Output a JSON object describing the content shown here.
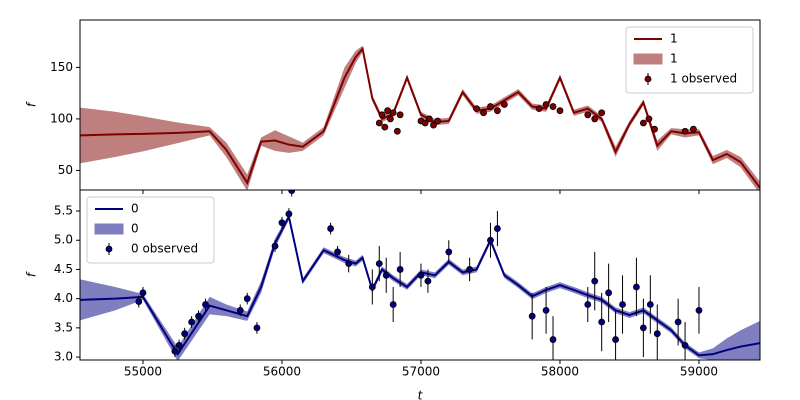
{
  "chart_data": [
    {
      "type": "line",
      "ylabel": "f",
      "legend": "upper right",
      "xlim": [
        54547,
        59439
      ],
      "xticks": [
        55000,
        56000,
        57000,
        58000,
        59000
      ],
      "ylim": [
        31,
        196
      ],
      "yticks": [
        50,
        100,
        150
      ],
      "x": [
        54550,
        54800,
        55000,
        55250,
        55480,
        55600,
        55750,
        55850,
        55950,
        56050,
        56150,
        56300,
        56450,
        56530,
        56580,
        56650,
        56720,
        56800,
        56900,
        57000,
        57100,
        57200,
        57300,
        57400,
        57500,
        57600,
        57700,
        57800,
        57900,
        58000,
        58100,
        58200,
        58300,
        58400,
        58500,
        58600,
        58700,
        58800,
        58900,
        59000,
        59100,
        59200,
        59300,
        59440
      ],
      "series": [
        {
          "name": "1",
          "color": "#800000",
          "values": [
            84,
            85,
            85.5,
            86.5,
            88,
            70,
            38,
            78,
            79,
            75,
            73,
            88,
            140,
            160,
            168,
            120,
            100,
            105,
            140,
            104,
            97,
            98,
            126,
            108,
            110,
            118,
            126,
            112,
            110,
            140,
            106,
            110,
            100,
            68,
            95,
            116,
            74,
            88,
            86,
            87,
            60,
            66,
            58,
            33
          ]
        }
      ],
      "band": {
        "name": "1",
        "color": "#bf7f7f",
        "lower": [
          57,
          63,
          68.5,
          76.5,
          84,
          63,
          30,
          74,
          69,
          67,
          69,
          84,
          130,
          154,
          165,
          117,
          97,
          102,
          137,
          101,
          94,
          95,
          123,
          105,
          107,
          115,
          123,
          109,
          107,
          137,
          103,
          107,
          97,
          63,
          92,
          113,
          69,
          85,
          82,
          84,
          56,
          62,
          53,
          27
        ],
        "upper": [
          111,
          107,
          102.5,
          96.5,
          92,
          77,
          46,
          82,
          89,
          83,
          77,
          92,
          150,
          166,
          171,
          123,
          103,
          108,
          143,
          107,
          100,
          101,
          129,
          111,
          113,
          121,
          129,
          115,
          113,
          143,
          109,
          113,
          103,
          73,
          98,
          119,
          79,
          91,
          90,
          90,
          64,
          70,
          63,
          39
        ]
      },
      "observed": {
        "name": "1 observed",
        "color": "#800000",
        "x": [
          56700,
          56720,
          56740,
          56760,
          56780,
          56800,
          56830,
          56850,
          57000,
          57030,
          57060,
          57090,
          57120,
          57400,
          57450,
          57500,
          57550,
          57600,
          57850,
          57900,
          57950,
          58000,
          58200,
          58250,
          58300,
          58600,
          58640,
          58680,
          58900,
          58960
        ],
        "values": [
          96,
          104,
          92,
          108,
          100,
          106,
          88,
          104,
          98,
          96,
          100,
          94,
          98,
          110,
          106,
          112,
          108,
          114,
          110,
          114,
          112,
          108,
          104,
          100,
          106,
          96,
          100,
          90,
          88,
          90
        ],
        "errors": [
          2,
          2,
          2,
          2,
          2,
          2,
          2,
          2,
          2,
          2,
          2,
          2,
          2,
          2,
          2,
          2,
          2,
          2,
          2,
          2,
          2,
          2,
          2,
          2,
          2,
          2,
          2,
          2,
          2,
          2
        ]
      }
    },
    {
      "type": "line",
      "ylabel": "f",
      "xlabel": "t",
      "legend": "upper left",
      "xlim": [
        54547,
        59439
      ],
      "xticks": [
        55000,
        56000,
        57000,
        58000,
        59000
      ],
      "ylim": [
        2.95,
        5.86
      ],
      "yticks": [
        {
          "value": 3,
          "label": "3.0"
        },
        3.5,
        {
          "value": 4,
          "label": "4.0"
        },
        4.5,
        {
          "value": 5,
          "label": "5.0"
        },
        5.5
      ],
      "x": [
        54550,
        54800,
        55000,
        55250,
        55480,
        55600,
        55750,
        55850,
        55950,
        56050,
        56150,
        56300,
        56450,
        56530,
        56580,
        56650,
        56720,
        56800,
        56900,
        57000,
        57100,
        57200,
        57300,
        57400,
        57500,
        57600,
        57700,
        57800,
        57900,
        58000,
        58100,
        58200,
        58300,
        58400,
        58500,
        58600,
        58700,
        58800,
        58900,
        59000,
        59100,
        59200,
        59300,
        59440
      ],
      "series": [
        {
          "name": "0",
          "color": "#000080",
          "values": [
            3.98,
            4.0,
            4.03,
            3.05,
            3.88,
            3.8,
            3.7,
            4.2,
            4.95,
            5.4,
            4.3,
            4.83,
            4.66,
            4.6,
            4.7,
            4.15,
            4.5,
            4.35,
            4.2,
            4.45,
            4.4,
            4.63,
            4.45,
            4.5,
            5.0,
            4.4,
            4.23,
            4.04,
            4.15,
            4.23,
            4.15,
            4.06,
            3.98,
            3.8,
            3.72,
            3.8,
            3.63,
            3.46,
            3.2,
            3.03,
            3.05,
            3.12,
            3.18,
            3.24
          ]
        }
      ],
      "band": {
        "name": "0",
        "color": "#7f7fbf",
        "lower": [
          3.63,
          3.8,
          3.98,
          2.93,
          3.73,
          3.7,
          3.62,
          4.1,
          4.87,
          5.35,
          4.25,
          4.78,
          4.61,
          4.55,
          4.65,
          4.1,
          4.45,
          4.3,
          4.15,
          4.4,
          4.35,
          4.58,
          4.4,
          4.45,
          4.95,
          4.35,
          4.18,
          3.99,
          4.1,
          4.18,
          4.1,
          4.01,
          3.93,
          3.75,
          3.67,
          3.75,
          3.58,
          3.41,
          3.15,
          2.98,
          2.95,
          2.92,
          2.9,
          2.86
        ],
        "upper": [
          4.33,
          4.2,
          4.08,
          3.17,
          4.03,
          3.9,
          3.78,
          4.3,
          5.03,
          5.45,
          4.35,
          4.88,
          4.71,
          4.65,
          4.75,
          4.2,
          4.55,
          4.4,
          4.25,
          4.5,
          4.45,
          4.68,
          4.5,
          4.55,
          5.05,
          4.45,
          4.28,
          4.09,
          4.2,
          4.28,
          4.2,
          4.11,
          4.03,
          3.85,
          3.77,
          3.85,
          3.68,
          3.51,
          3.25,
          3.08,
          3.15,
          3.32,
          3.46,
          3.62
        ]
      },
      "observed": {
        "name": "0 observed",
        "color": "#000080",
        "x": [
          54970,
          55000,
          55230,
          55260,
          55300,
          55350,
          55400,
          55450,
          55700,
          55750,
          55820,
          55950,
          56000,
          56050,
          56070,
          56350,
          56400,
          56480,
          56650,
          56700,
          56750,
          56800,
          56850,
          57000,
          57050,
          57200,
          57350,
          57500,
          57550,
          57800,
          57900,
          57950,
          58200,
          58250,
          58300,
          58350,
          58400,
          58450,
          58550,
          58600,
          58650,
          58700,
          58850,
          58900,
          59000
        ],
        "values": [
          3.95,
          4.1,
          3.1,
          3.2,
          3.4,
          3.6,
          3.7,
          3.9,
          3.8,
          4.0,
          3.5,
          4.9,
          5.3,
          5.45,
          5.85,
          5.2,
          4.8,
          4.6,
          4.2,
          4.6,
          4.4,
          3.9,
          4.5,
          4.4,
          4.3,
          4.8,
          4.5,
          5.0,
          5.2,
          3.7,
          3.8,
          3.3,
          3.9,
          4.3,
          3.6,
          4.1,
          3.3,
          3.9,
          4.2,
          3.5,
          3.9,
          3.4,
          3.6,
          3.2,
          3.8
        ],
        "errors": [
          0.1,
          0.1,
          0.1,
          0.1,
          0.1,
          0.1,
          0.1,
          0.1,
          0.1,
          0.1,
          0.1,
          0.1,
          0.1,
          0.1,
          0.1,
          0.1,
          0.1,
          0.15,
          0.3,
          0.3,
          0.3,
          0.3,
          0.3,
          0.2,
          0.2,
          0.2,
          0.2,
          0.3,
          0.3,
          0.4,
          0.4,
          0.4,
          0.3,
          0.5,
          0.5,
          0.5,
          0.5,
          0.5,
          0.5,
          0.5,
          0.5,
          0.5,
          0.4,
          0.4,
          0.4
        ]
      }
    }
  ]
}
